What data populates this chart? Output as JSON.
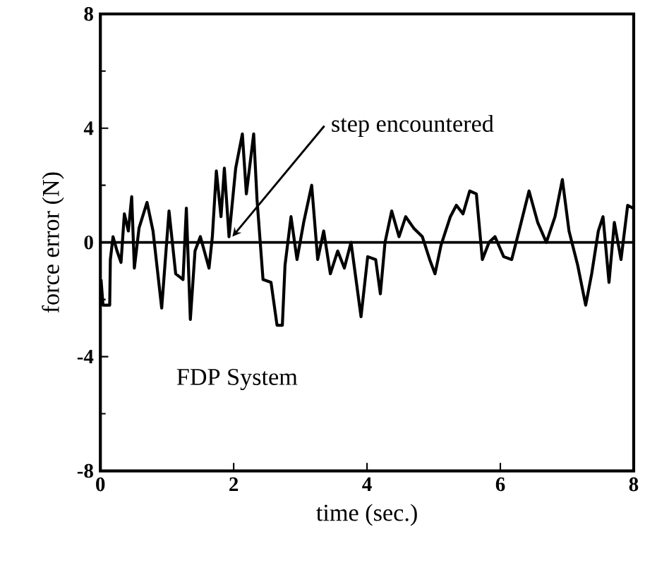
{
  "chart_data": {
    "type": "line",
    "xlabel": "time (sec.)",
    "ylabel": "force error (N)",
    "xlim": [
      0,
      8
    ],
    "ylim": [
      -8,
      8
    ],
    "xticks": [
      0,
      2,
      4,
      6,
      8
    ],
    "yticks": [
      8,
      4,
      0,
      -4,
      -8
    ],
    "marker": "none",
    "line_style": "solid",
    "ref_lines": [
      {
        "axis": "y",
        "value": 0,
        "color": "#000000"
      }
    ],
    "annotations": [
      {
        "text": "step encountered",
        "x": 1.98,
        "y": 0.2
      },
      "FDP System"
    ],
    "series": [
      {
        "color": "#000000",
        "x": [
          0.01,
          0.04,
          0.14,
          0.15,
          0.19,
          0.25,
          0.31,
          0.36,
          0.42,
          0.47,
          0.51,
          0.58,
          0.7,
          0.79,
          0.92,
          1.03,
          1.13,
          1.24,
          1.29,
          1.35,
          1.42,
          1.5,
          1.63,
          1.68,
          1.74,
          1.81,
          1.86,
          1.93,
          2.03,
          2.13,
          2.19,
          2.3,
          2.35,
          2.44,
          2.56,
          2.65,
          2.73,
          2.77,
          2.86,
          2.95,
          3.05,
          3.17,
          3.26,
          3.35,
          3.45,
          3.56,
          3.66,
          3.76,
          3.91,
          4.01,
          4.13,
          4.2,
          4.27,
          4.37,
          4.48,
          4.58,
          4.7,
          4.83,
          4.94,
          5.02,
          5.11,
          5.25,
          5.34,
          5.44,
          5.54,
          5.64,
          5.73,
          5.83,
          5.92,
          6.05,
          6.17,
          6.28,
          6.43,
          6.56,
          6.69,
          6.82,
          6.93,
          7.03,
          7.16,
          7.28,
          7.37,
          7.47,
          7.54,
          7.63,
          7.71,
          7.81,
          7.91,
          7.99
        ],
        "values": [
          -1.3,
          -2.2,
          -2.2,
          -0.6,
          0.2,
          -0.3,
          -0.7,
          1.0,
          0.4,
          1.6,
          -0.9,
          0.5,
          1.4,
          0.4,
          -2.3,
          1.1,
          -1.1,
          -1.3,
          1.2,
          -2.7,
          -0.3,
          0.2,
          -0.9,
          0.2,
          2.5,
          0.9,
          2.6,
          0.2,
          2.6,
          3.8,
          1.7,
          3.8,
          1.5,
          -1.3,
          -1.4,
          -2.9,
          -2.9,
          -0.8,
          0.9,
          -0.6,
          0.7,
          2.0,
          -0.6,
          0.4,
          -1.1,
          -0.3,
          -0.9,
          0.0,
          -2.6,
          -0.5,
          -0.6,
          -1.8,
          0.0,
          1.1,
          0.2,
          0.9,
          0.5,
          0.2,
          -0.6,
          -1.1,
          -0.1,
          0.9,
          1.3,
          1.0,
          1.8,
          1.7,
          -0.6,
          0.0,
          0.2,
          -0.5,
          -0.6,
          0.4,
          1.8,
          0.7,
          0.0,
          0.9,
          2.2,
          0.4,
          -0.8,
          -2.2,
          -1.1,
          0.4,
          0.9,
          -1.4,
          0.7,
          -0.6,
          1.3,
          1.2
        ]
      }
    ]
  }
}
